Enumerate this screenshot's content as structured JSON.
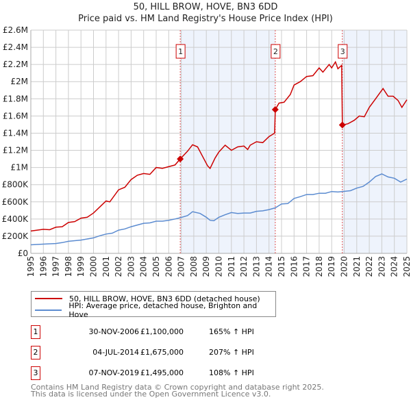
{
  "chart_data": {
    "type": "line",
    "title": "50, HILL BROW, HOVE, BN3 6DD",
    "subtitle": "Price paid vs. HM Land Registry's House Price Index (HPI)",
    "xlabel": "",
    "ylabel": "",
    "xlim": [
      1995,
      2025
    ],
    "ylim": [
      0,
      2600000
    ],
    "y_ticks": [
      0,
      200000,
      400000,
      600000,
      800000,
      1000000,
      1200000,
      1400000,
      1600000,
      1800000,
      2000000,
      2200000,
      2400000,
      2600000
    ],
    "y_tick_labels": [
      "£0",
      "£200K",
      "£400K",
      "£600K",
      "£800K",
      "£1M",
      "£1.2M",
      "£1.4M",
      "£1.6M",
      "£1.8M",
      "£2M",
      "£2.2M",
      "£2.4M",
      "£2.6M"
    ],
    "x_tick_labels": [
      "1995",
      "1996",
      "1997",
      "1998",
      "1999",
      "2000",
      "2001",
      "2002",
      "2003",
      "2004",
      "2005",
      "2006",
      "2007",
      "2008",
      "2009",
      "2010",
      "2011",
      "2012",
      "2013",
      "2014",
      "2015",
      "2016",
      "2017",
      "2018",
      "2019",
      "2020",
      "2021",
      "2022",
      "2023",
      "2024",
      "2025"
    ],
    "grid": true,
    "series": [
      {
        "name": "50, HILL BROW, HOVE, BN3 6DD (detached house)",
        "color": "#cc0000",
        "x": [
          1995,
          1996,
          1996.5,
          1997,
          1997.5,
          1998,
          1998.5,
          1999,
          1999.5,
          2000,
          2000.5,
          2001,
          2001.3,
          2002,
          2002.5,
          2003,
          2003.5,
          2004,
          2004.5,
          2005,
          2005.5,
          2006,
          2006.5,
          2006.92,
          2007.5,
          2007.9,
          2008.3,
          2008.7,
          2009.1,
          2009.3,
          2009.7,
          2010,
          2010.5,
          2011,
          2011.5,
          2012,
          2012.3,
          2012.5,
          2013,
          2013.5,
          2014,
          2014.45,
          2014.5,
          2014.8,
          2015.2,
          2015.7,
          2016,
          2016.5,
          2017,
          2017.5,
          2018,
          2018.3,
          2018.8,
          2019,
          2019.3,
          2019.5,
          2019.8,
          2019.85,
          2020.3,
          2020.8,
          2021.2,
          2021.6,
          2022,
          2022.5,
          2022.8,
          2023.1,
          2023.5,
          2023.9,
          2024.3,
          2024.6,
          2025
        ],
        "y": [
          260000,
          280000,
          275000,
          305000,
          310000,
          360000,
          370000,
          410000,
          420000,
          470000,
          540000,
          610000,
          600000,
          740000,
          770000,
          860000,
          910000,
          930000,
          920000,
          1000000,
          990000,
          1010000,
          1030000,
          1100000,
          1190000,
          1265000,
          1240000,
          1130000,
          1020000,
          990000,
          1110000,
          1180000,
          1260000,
          1200000,
          1240000,
          1250000,
          1210000,
          1260000,
          1300000,
          1290000,
          1360000,
          1400000,
          1675000,
          1750000,
          1760000,
          1850000,
          1960000,
          2000000,
          2060000,
          2070000,
          2160000,
          2110000,
          2200000,
          2160000,
          2230000,
          2150000,
          2190000,
          1495000,
          1510000,
          1550000,
          1600000,
          1590000,
          1700000,
          1800000,
          1860000,
          1920000,
          1830000,
          1830000,
          1780000,
          1700000,
          1790000
        ]
      },
      {
        "name": "HPI: Average price, detached house, Brighton and Hove",
        "color": "#5b8bd0",
        "x": [
          1995,
          1996,
          1997,
          1997.5,
          1998,
          1999,
          2000,
          2000.5,
          2001,
          2001.5,
          2002,
          2002.5,
          2003,
          2003.5,
          2004,
          2004.5,
          2005,
          2005.5,
          2006,
          2006.5,
          2006.92,
          2007.5,
          2007.9,
          2008.5,
          2009,
          2009.3,
          2009.6,
          2010,
          2010.5,
          2011,
          2011.5,
          2012,
          2012.5,
          2013,
          2013.5,
          2014,
          2014.5,
          2015,
          2015.5,
          2016,
          2016.5,
          2017,
          2017.5,
          2018,
          2018.5,
          2019,
          2019.5,
          2019.85,
          2020.5,
          2021,
          2021.5,
          2022,
          2022.5,
          2023,
          2023.5,
          2024,
          2024.5,
          2025
        ],
        "y": [
          100000,
          108000,
          115000,
          125000,
          140000,
          155000,
          180000,
          205000,
          225000,
          235000,
          270000,
          285000,
          310000,
          330000,
          350000,
          355000,
          375000,
          375000,
          385000,
          400000,
          415000,
          440000,
          485000,
          465000,
          420000,
          385000,
          380000,
          420000,
          450000,
          475000,
          465000,
          470000,
          470000,
          490000,
          495000,
          510000,
          530000,
          575000,
          580000,
          640000,
          660000,
          685000,
          685000,
          700000,
          700000,
          720000,
          715000,
          720000,
          730000,
          760000,
          780000,
          830000,
          895000,
          925000,
          890000,
          875000,
          830000,
          865000
        ]
      }
    ],
    "sales": [
      {
        "label": "1",
        "x": 2006.92,
        "y": 1100000,
        "date": "30-NOV-2006",
        "price": "£1,100,000",
        "hpi": "165% ↑ HPI"
      },
      {
        "label": "2",
        "x": 2014.5,
        "y": 1675000,
        "date": "04-JUL-2014",
        "price": "£1,675,000",
        "hpi": "207% ↑ HPI"
      },
      {
        "label": "3",
        "x": 2019.85,
        "y": 1495000,
        "date": "07-NOV-2019",
        "price": "£1,495,000",
        "hpi": "108% ↑ HPI"
      }
    ],
    "shaded_ranges": [
      [
        2006.92,
        2014.5
      ],
      [
        2019.85,
        2025
      ]
    ],
    "legend_placement": "below"
  },
  "footer": [
    "Contains HM Land Registry data © Crown copyright and database right 2025.",
    "This data is licensed under the Open Government Licence v3.0."
  ]
}
